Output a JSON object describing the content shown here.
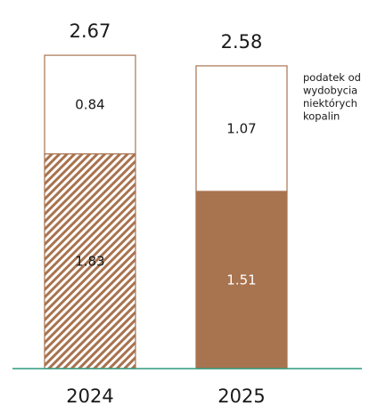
{
  "chart_data": {
    "type": "bar",
    "stacked": true,
    "categories": [
      "2024",
      "2025"
    ],
    "totals": [
      "2.67",
      "2.58"
    ],
    "series": [
      {
        "values": [
          1.83,
          1.51
        ],
        "labels": [
          "1.83",
          "1.51"
        ],
        "fill_style": [
          "hatched",
          "solid"
        ]
      },
      {
        "name": "podatek od wydobycia niektórych kopalin",
        "values": [
          0.84,
          1.07
        ],
        "labels": [
          "0.84",
          "1.07"
        ],
        "fill_style": [
          "white",
          "white"
        ]
      }
    ],
    "legend": {
      "placement": "right",
      "lines": [
        "podatek od",
        "wydobycia",
        "niektórych",
        "kopalin"
      ]
    },
    "colors": {
      "brown": "#a8734f",
      "outline": "#a8734f",
      "baseline": "#2e9a7e",
      "text_dark": "#1a1a1a",
      "text_light": "#ffffff"
    }
  }
}
